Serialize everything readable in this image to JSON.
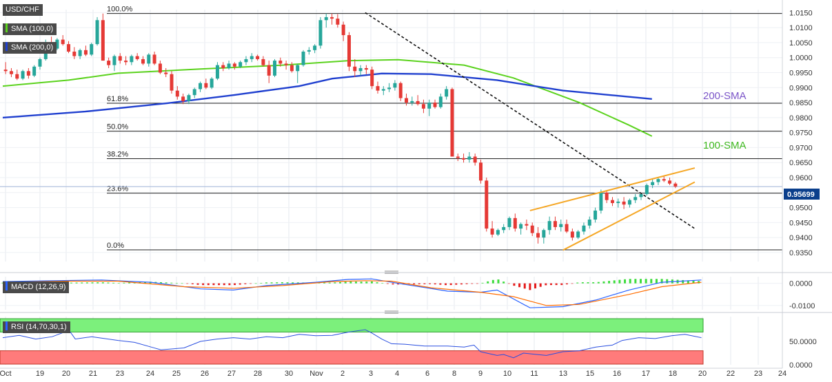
{
  "symbol": "USD/CHF",
  "colors": {
    "up": "#26a69a",
    "down": "#e53935",
    "sma100": "#5ad21c",
    "sma200": "#1f3fcf",
    "wedge": "#f5a623",
    "macd": "#2962ff",
    "signal": "#ff6d00",
    "rsiHigh": "#7cf07c",
    "rsiLow": "#ff7b7b"
  },
  "indicators": {
    "sma100_tag": "SMA (100,0)",
    "sma200_tag": "SMA (200,0)",
    "macd_tag": "MACD (12,26,9)",
    "rsi_tag": "RSI (14,70,30,1)"
  },
  "annotations": {
    "sma200": "200-SMA",
    "sma100": "100-SMA"
  },
  "last_price": "0.95699",
  "chart_data": {
    "type": "candlestick",
    "title": "USD/CHF",
    "x_ticks": [
      "Oct",
      "19",
      "20",
      "21",
      "23",
      "24",
      "25",
      "26",
      "27",
      "28",
      "30",
      "Nov",
      "2",
      "3",
      "4",
      "6",
      "8",
      "9",
      "10",
      "11",
      "13",
      "15",
      "16",
      "17",
      "18",
      "20",
      "22",
      "23",
      "24"
    ],
    "y_ticks": [
      "1.0150",
      "1.0100",
      "1.0050",
      "1.0000",
      "0.9950",
      "0.9900",
      "0.9850",
      "0.9800",
      "0.9750",
      "0.9700",
      "0.9650",
      "0.9600",
      "0.9550",
      "0.9500",
      "0.9450",
      "0.9400",
      "0.9350"
    ],
    "ylim": [
      0.932,
      1.016
    ],
    "fibonacci": [
      {
        "label": "100.0%",
        "value": 1.0147
      },
      {
        "label": "61.8%",
        "value": 0.9848
      },
      {
        "label": "50.0%",
        "value": 0.9755
      },
      {
        "label": "38.2%",
        "value": 0.9663
      },
      {
        "label": "23.6%",
        "value": 0.9548
      },
      {
        "label": "0.0%",
        "value": 0.9359
      }
    ],
    "candles": [
      {
        "o": 0.996,
        "h": 0.9985,
        "l": 0.9945,
        "c": 0.9955
      },
      {
        "o": 0.9955,
        "h": 0.9965,
        "l": 0.9935,
        "c": 0.9945
      },
      {
        "o": 0.9945,
        "h": 0.996,
        "l": 0.9925,
        "c": 0.993
      },
      {
        "o": 0.993,
        "h": 0.996,
        "l": 0.9925,
        "c": 0.9955
      },
      {
        "o": 0.9955,
        "h": 0.9965,
        "l": 0.993,
        "c": 0.994
      },
      {
        "o": 0.994,
        "h": 0.9975,
        "l": 0.9935,
        "c": 0.997
      },
      {
        "o": 0.997,
        "h": 1.0,
        "l": 0.996,
        "c": 0.9995
      },
      {
        "o": 0.9995,
        "h": 1.006,
        "l": 0.999,
        "c": 1.005
      },
      {
        "o": 1.005,
        "h": 1.007,
        "l": 1.002,
        "c": 1.003
      },
      {
        "o": 1.003,
        "h": 1.0065,
        "l": 1.0025,
        "c": 1.006
      },
      {
        "o": 1.006,
        "h": 1.0075,
        "l": 1.004,
        "c": 1.0045
      },
      {
        "o": 1.0045,
        "h": 1.0055,
        "l": 1.0015,
        "c": 1.002
      },
      {
        "o": 1.002,
        "h": 1.0035,
        "l": 0.9995,
        "c": 1.0005
      },
      {
        "o": 1.0005,
        "h": 1.003,
        "l": 0.9995,
        "c": 1.0025
      },
      {
        "o": 1.0025,
        "h": 1.004,
        "l": 1.0005,
        "c": 1.001
      },
      {
        "o": 1.001,
        "h": 1.005,
        "l": 1.0005,
        "c": 1.0045
      },
      {
        "o": 1.0045,
        "h": 1.0135,
        "l": 1.004,
        "c": 1.0125
      },
      {
        "o": 1.0125,
        "h": 1.0147,
        "l": 0.999,
        "c": 0.999
      },
      {
        "o": 0.999,
        "h": 1.0,
        "l": 0.9965,
        "c": 0.9975
      },
      {
        "o": 0.9975,
        "h": 1.001,
        "l": 0.9955,
        "c": 1.0005
      },
      {
        "o": 1.0005,
        "h": 1.0015,
        "l": 0.998,
        "c": 0.999
      },
      {
        "o": 0.999,
        "h": 1.0005,
        "l": 0.9975,
        "c": 0.9985
      },
      {
        "o": 0.9985,
        "h": 1.001,
        "l": 0.9975,
        "c": 1.0005
      },
      {
        "o": 1.0005,
        "h": 1.0015,
        "l": 0.999,
        "c": 0.9995
      },
      {
        "o": 0.9995,
        "h": 1.0005,
        "l": 0.9975,
        "c": 0.998
      },
      {
        "o": 0.998,
        "h": 1.0015,
        "l": 0.997,
        "c": 1.001
      },
      {
        "o": 1.001,
        "h": 1.002,
        "l": 0.9975,
        "c": 0.998
      },
      {
        "o": 0.998,
        "h": 0.999,
        "l": 0.9945,
        "c": 0.995
      },
      {
        "o": 0.995,
        "h": 0.9965,
        "l": 0.9935,
        "c": 0.9945
      },
      {
        "o": 0.9945,
        "h": 0.9955,
        "l": 0.988,
        "c": 0.989
      },
      {
        "o": 0.989,
        "h": 0.9905,
        "l": 0.986,
        "c": 0.987
      },
      {
        "o": 0.987,
        "h": 0.988,
        "l": 0.9845,
        "c": 0.9855
      },
      {
        "o": 0.9855,
        "h": 0.988,
        "l": 0.9845,
        "c": 0.9875
      },
      {
        "o": 0.9875,
        "h": 0.99,
        "l": 0.9865,
        "c": 0.9895
      },
      {
        "o": 0.9895,
        "h": 0.992,
        "l": 0.9885,
        "c": 0.9915
      },
      {
        "o": 0.9915,
        "h": 0.993,
        "l": 0.9895,
        "c": 0.99
      },
      {
        "o": 0.99,
        "h": 0.9935,
        "l": 0.9895,
        "c": 0.993
      },
      {
        "o": 0.993,
        "h": 0.9985,
        "l": 0.9925,
        "c": 0.9975
      },
      {
        "o": 0.9975,
        "h": 0.9985,
        "l": 0.9955,
        "c": 0.9965
      },
      {
        "o": 0.9965,
        "h": 0.999,
        "l": 0.996,
        "c": 0.998
      },
      {
        "o": 0.998,
        "h": 0.9985,
        "l": 0.996,
        "c": 0.997
      },
      {
        "o": 0.997,
        "h": 0.999,
        "l": 0.9965,
        "c": 0.9985
      },
      {
        "o": 0.9985,
        "h": 1.0005,
        "l": 0.9975,
        "c": 0.9995
      },
      {
        "o": 0.9995,
        "h": 1.0015,
        "l": 0.9985,
        "c": 1.0005
      },
      {
        "o": 1.0005,
        "h": 1.001,
        "l": 0.999,
        "c": 0.9995
      },
      {
        "o": 0.9995,
        "h": 1.0005,
        "l": 0.997,
        "c": 0.9975
      },
      {
        "o": 0.9975,
        "h": 0.999,
        "l": 0.9915,
        "c": 0.994
      },
      {
        "o": 0.994,
        "h": 0.9995,
        "l": 0.9935,
        "c": 0.999
      },
      {
        "o": 0.999,
        "h": 1.0,
        "l": 0.997,
        "c": 0.998
      },
      {
        "o": 0.998,
        "h": 0.999,
        "l": 0.996,
        "c": 0.9975
      },
      {
        "o": 0.9975,
        "h": 0.9985,
        "l": 0.995,
        "c": 0.9955
      },
      {
        "o": 0.9955,
        "h": 0.998,
        "l": 0.9915,
        "c": 0.9975
      },
      {
        "o": 0.9975,
        "h": 1.0025,
        "l": 0.997,
        "c": 1.002
      },
      {
        "o": 1.002,
        "h": 1.0035,
        "l": 1.001,
        "c": 1.0025
      },
      {
        "o": 1.0025,
        "h": 1.0045,
        "l": 1.0015,
        "c": 1.004
      },
      {
        "o": 1.004,
        "h": 1.0135,
        "l": 1.003,
        "c": 1.0125
      },
      {
        "o": 1.0125,
        "h": 1.0147,
        "l": 1.01,
        "c": 1.0135
      },
      {
        "o": 1.0135,
        "h": 1.0147,
        "l": 1.011,
        "c": 1.013
      },
      {
        "o": 1.013,
        "h": 1.0145,
        "l": 1.01,
        "c": 1.011
      },
      {
        "o": 1.011,
        "h": 1.012,
        "l": 1.0055,
        "c": 1.0075
      },
      {
        "o": 1.0075,
        "h": 1.0085,
        "l": 0.9955,
        "c": 0.997
      },
      {
        "o": 0.997,
        "h": 0.9995,
        "l": 0.9935,
        "c": 0.9955
      },
      {
        "o": 0.9955,
        "h": 0.9975,
        "l": 0.994,
        "c": 0.9965
      },
      {
        "o": 0.9965,
        "h": 0.9975,
        "l": 0.9945,
        "c": 0.996
      },
      {
        "o": 0.996,
        "h": 0.997,
        "l": 0.9895,
        "c": 0.9905
      },
      {
        "o": 0.9905,
        "h": 0.992,
        "l": 0.988,
        "c": 0.989
      },
      {
        "o": 0.989,
        "h": 0.9905,
        "l": 0.9875,
        "c": 0.9895
      },
      {
        "o": 0.9895,
        "h": 0.9915,
        "l": 0.9885,
        "c": 0.99
      },
      {
        "o": 0.99,
        "h": 0.9925,
        "l": 0.989,
        "c": 0.9915
      },
      {
        "o": 0.9915,
        "h": 0.992,
        "l": 0.9855,
        "c": 0.9865
      },
      {
        "o": 0.9865,
        "h": 0.988,
        "l": 0.984,
        "c": 0.985
      },
      {
        "o": 0.985,
        "h": 0.987,
        "l": 0.984,
        "c": 0.9855
      },
      {
        "o": 0.9855,
        "h": 0.9875,
        "l": 0.984,
        "c": 0.9845
      },
      {
        "o": 0.9845,
        "h": 0.986,
        "l": 0.9815,
        "c": 0.983
      },
      {
        "o": 0.983,
        "h": 0.986,
        "l": 0.9805,
        "c": 0.985
      },
      {
        "o": 0.985,
        "h": 0.986,
        "l": 0.983,
        "c": 0.9835
      },
      {
        "o": 0.9835,
        "h": 0.988,
        "l": 0.983,
        "c": 0.987
      },
      {
        "o": 0.987,
        "h": 0.9905,
        "l": 0.986,
        "c": 0.9895
      },
      {
        "o": 0.9895,
        "h": 0.99,
        "l": 0.967,
        "c": 0.967
      },
      {
        "o": 0.967,
        "h": 0.968,
        "l": 0.9655,
        "c": 0.9665
      },
      {
        "o": 0.9665,
        "h": 0.968,
        "l": 0.965,
        "c": 0.966
      },
      {
        "o": 0.966,
        "h": 0.9685,
        "l": 0.965,
        "c": 0.967
      },
      {
        "o": 0.967,
        "h": 0.968,
        "l": 0.964,
        "c": 0.965
      },
      {
        "o": 0.965,
        "h": 0.966,
        "l": 0.958,
        "c": 0.959
      },
      {
        "o": 0.959,
        "h": 0.96,
        "l": 0.942,
        "c": 0.943
      },
      {
        "o": 0.943,
        "h": 0.9455,
        "l": 0.94,
        "c": 0.941
      },
      {
        "o": 0.941,
        "h": 0.943,
        "l": 0.9405,
        "c": 0.9425
      },
      {
        "o": 0.9425,
        "h": 0.9445,
        "l": 0.9415,
        "c": 0.9435
      },
      {
        "o": 0.9435,
        "h": 0.947,
        "l": 0.9425,
        "c": 0.9465
      },
      {
        "o": 0.9465,
        "h": 0.948,
        "l": 0.942,
        "c": 0.943
      },
      {
        "o": 0.943,
        "h": 0.945,
        "l": 0.941,
        "c": 0.9445
      },
      {
        "o": 0.9445,
        "h": 0.946,
        "l": 0.9425,
        "c": 0.944
      },
      {
        "o": 0.944,
        "h": 0.945,
        "l": 0.9405,
        "c": 0.9415
      },
      {
        "o": 0.9415,
        "h": 0.9435,
        "l": 0.938,
        "c": 0.94
      },
      {
        "o": 0.94,
        "h": 0.943,
        "l": 0.938,
        "c": 0.9425
      },
      {
        "o": 0.9425,
        "h": 0.947,
        "l": 0.941,
        "c": 0.9455
      },
      {
        "o": 0.9455,
        "h": 0.947,
        "l": 0.9425,
        "c": 0.9435
      },
      {
        "o": 0.9435,
        "h": 0.946,
        "l": 0.942,
        "c": 0.9445
      },
      {
        "o": 0.9445,
        "h": 0.946,
        "l": 0.9415,
        "c": 0.942
      },
      {
        "o": 0.942,
        "h": 0.943,
        "l": 0.939,
        "c": 0.94
      },
      {
        "o": 0.94,
        "h": 0.9425,
        "l": 0.9395,
        "c": 0.942
      },
      {
        "o": 0.942,
        "h": 0.945,
        "l": 0.941,
        "c": 0.944
      },
      {
        "o": 0.944,
        "h": 0.947,
        "l": 0.943,
        "c": 0.946
      },
      {
        "o": 0.946,
        "h": 0.95,
        "l": 0.945,
        "c": 0.949
      },
      {
        "o": 0.949,
        "h": 0.956,
        "l": 0.948,
        "c": 0.955
      },
      {
        "o": 0.955,
        "h": 0.9555,
        "l": 0.9515,
        "c": 0.9525
      },
      {
        "o": 0.9525,
        "h": 0.9535,
        "l": 0.9505,
        "c": 0.9515
      },
      {
        "o": 0.9515,
        "h": 0.953,
        "l": 0.95,
        "c": 0.952
      },
      {
        "o": 0.952,
        "h": 0.9535,
        "l": 0.9495,
        "c": 0.951
      },
      {
        "o": 0.951,
        "h": 0.953,
        "l": 0.95,
        "c": 0.9525
      },
      {
        "o": 0.9525,
        "h": 0.9545,
        "l": 0.9515,
        "c": 0.9535
      },
      {
        "o": 0.9535,
        "h": 0.955,
        "l": 0.9525,
        "c": 0.9545
      },
      {
        "o": 0.9545,
        "h": 0.958,
        "l": 0.954,
        "c": 0.9575
      },
      {
        "o": 0.9575,
        "h": 0.9595,
        "l": 0.9565,
        "c": 0.9585
      },
      {
        "o": 0.9585,
        "h": 0.96,
        "l": 0.9575,
        "c": 0.9595
      },
      {
        "o": 0.9595,
        "h": 0.9605,
        "l": 0.9585,
        "c": 0.959
      },
      {
        "o": 0.959,
        "h": 0.96,
        "l": 0.9575,
        "c": 0.958
      },
      {
        "o": 0.958,
        "h": 0.9585,
        "l": 0.9565,
        "c": 0.957
      }
    ],
    "sma100": [
      [
        0,
        0.9905
      ],
      [
        20,
        0.9925
      ],
      [
        35,
        0.9948
      ],
      [
        60,
        0.9962
      ],
      [
        85,
        0.9975
      ],
      [
        105,
        0.999
      ],
      [
        120,
        0.9993
      ],
      [
        140,
        0.9975
      ],
      [
        155,
        0.9932
      ],
      [
        175,
        0.985
      ],
      [
        190,
        0.9775
      ],
      [
        197,
        0.9738
      ]
    ],
    "sma200": [
      [
        0,
        0.98
      ],
      [
        25,
        0.982
      ],
      [
        50,
        0.9848
      ],
      [
        70,
        0.9875
      ],
      [
        90,
        0.9905
      ],
      [
        100,
        0.993
      ],
      [
        115,
        0.9947
      ],
      [
        130,
        0.9945
      ],
      [
        150,
        0.9925
      ],
      [
        170,
        0.989
      ],
      [
        197,
        0.9862
      ]
    ],
    "downtrend": [
      [
        110,
        1.015
      ],
      [
        210,
        0.943
      ]
    ],
    "wedge_upper": [
      [
        160,
        0.949
      ],
      [
        210,
        0.9632
      ]
    ],
    "wedge_lower": [
      [
        170,
        0.9358
      ],
      [
        210,
        0.9585
      ]
    ],
    "macd": {
      "y_ticks": [
        "0.0000",
        "-0.0100"
      ],
      "ylim": [
        -0.0125,
        0.003
      ],
      "macd_line": [
        [
          0,
          0.0008
        ],
        [
          15,
          0.0012
        ],
        [
          30,
          0.0015
        ],
        [
          45,
          0.0005
        ],
        [
          60,
          -0.0025
        ],
        [
          70,
          -0.003
        ],
        [
          80,
          -0.001
        ],
        [
          95,
          0.0005
        ],
        [
          105,
          0.0018
        ],
        [
          112,
          0.002
        ],
        [
          120,
          0.0
        ],
        [
          135,
          -0.0035
        ],
        [
          145,
          -0.004
        ],
        [
          150,
          -0.003
        ],
        [
          160,
          -0.011
        ],
        [
          170,
          -0.0105
        ],
        [
          180,
          -0.0075
        ],
        [
          190,
          -0.003
        ],
        [
          200,
          0.0005
        ],
        [
          212,
          0.0015
        ]
      ],
      "signal_line": [
        [
          0,
          0.0005
        ],
        [
          20,
          0.001
        ],
        [
          35,
          0.001
        ],
        [
          55,
          -0.0015
        ],
        [
          70,
          -0.0022
        ],
        [
          85,
          -0.001
        ],
        [
          100,
          0.0008
        ],
        [
          110,
          0.0012
        ],
        [
          118,
          0.001
        ],
        [
          130,
          -0.002
        ],
        [
          145,
          -0.004
        ],
        [
          155,
          -0.006
        ],
        [
          165,
          -0.01
        ],
        [
          175,
          -0.0095
        ],
        [
          190,
          -0.005
        ],
        [
          200,
          -0.0015
        ],
        [
          212,
          0.0005
        ]
      ]
    },
    "rsi": {
      "y_ticks": [
        "50.0000",
        "0.0000"
      ],
      "ylim": [
        0,
        100
      ],
      "overbought": 70,
      "oversold": 30,
      "values": [
        [
          0,
          58
        ],
        [
          5,
          63
        ],
        [
          10,
          55
        ],
        [
          15,
          60
        ],
        [
          18,
          68
        ],
        [
          20,
          75
        ],
        [
          22,
          55
        ],
        [
          27,
          60
        ],
        [
          35,
          52
        ],
        [
          40,
          48
        ],
        [
          45,
          38
        ],
        [
          48,
          32
        ],
        [
          55,
          36
        ],
        [
          60,
          50
        ],
        [
          65,
          55
        ],
        [
          70,
          58
        ],
        [
          75,
          55
        ],
        [
          80,
          60
        ],
        [
          85,
          58
        ],
        [
          90,
          65
        ],
        [
          95,
          62
        ],
        [
          100,
          63
        ],
        [
          105,
          70
        ],
        [
          110,
          75
        ],
        [
          112,
          68
        ],
        [
          115,
          55
        ],
        [
          118,
          45
        ],
        [
          122,
          44
        ],
        [
          128,
          40
        ],
        [
          135,
          40
        ],
        [
          140,
          38
        ],
        [
          143,
          42
        ],
        [
          145,
          28
        ],
        [
          150,
          20
        ],
        [
          152,
          22
        ],
        [
          155,
          15
        ],
        [
          158,
          25
        ],
        [
          162,
          22
        ],
        [
          165,
          20
        ],
        [
          170,
          28
        ],
        [
          175,
          30
        ],
        [
          180,
          38
        ],
        [
          185,
          42
        ],
        [
          188,
          52
        ],
        [
          193,
          58
        ],
        [
          198,
          56
        ],
        [
          203,
          62
        ],
        [
          207,
          65
        ],
        [
          212,
          58
        ]
      ]
    }
  }
}
